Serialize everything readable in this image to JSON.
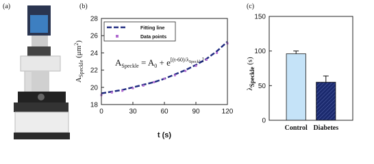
{
  "panel_a": {
    "label": "(a)"
  },
  "chart_data": [
    {
      "type": "line",
      "panel_label": "(b)",
      "xlabel": "t (s)",
      "ylabel": [
        "A",
        "Speckle",
        " (μm",
        "2",
        ")"
      ],
      "equation": [
        "A",
        "Speckle",
        " = A",
        "0",
        " + e",
        "[(t-60)/λ",
        "Speckle",
        "]"
      ],
      "x": [
        0,
        10,
        20,
        30,
        40,
        50,
        60,
        70,
        80,
        90,
        100,
        110,
        120
      ],
      "series": [
        {
          "name": "Fitting line",
          "color": "#1f2a80",
          "style": "dashed",
          "values": [
            19.3,
            19.5,
            19.7,
            20.0,
            20.3,
            20.6,
            21.0,
            21.5,
            22.0,
            22.6,
            23.3,
            24.2,
            25.3
          ]
        },
        {
          "name": "Data points",
          "color": "#b06ad0",
          "style": "markers",
          "values": [
            19.1,
            19.4,
            19.6,
            19.9,
            20.2,
            20.6,
            21.0,
            21.4,
            21.9,
            22.5,
            23.2,
            24.0,
            25.1
          ]
        }
      ],
      "xlim": [
        0,
        120
      ],
      "xticks": [
        0,
        30,
        60,
        90,
        120
      ],
      "ylim": [
        18,
        28
      ],
      "yticks": [
        18,
        20,
        22,
        24,
        26,
        28
      ],
      "legend": "upper left"
    },
    {
      "type": "bar",
      "panel_label": "(c)",
      "ylabel": [
        "λ",
        "Speckle",
        " (s)"
      ],
      "categories": [
        "Control",
        "Diabetes"
      ],
      "values": [
        96,
        55
      ],
      "errors": [
        4,
        9
      ],
      "colors": [
        "#c5e3f8",
        "#1b2a6e"
      ],
      "hatch": [
        false,
        true
      ],
      "ylim": [
        0,
        150
      ],
      "yticks": [
        0,
        50,
        100,
        150
      ]
    }
  ]
}
